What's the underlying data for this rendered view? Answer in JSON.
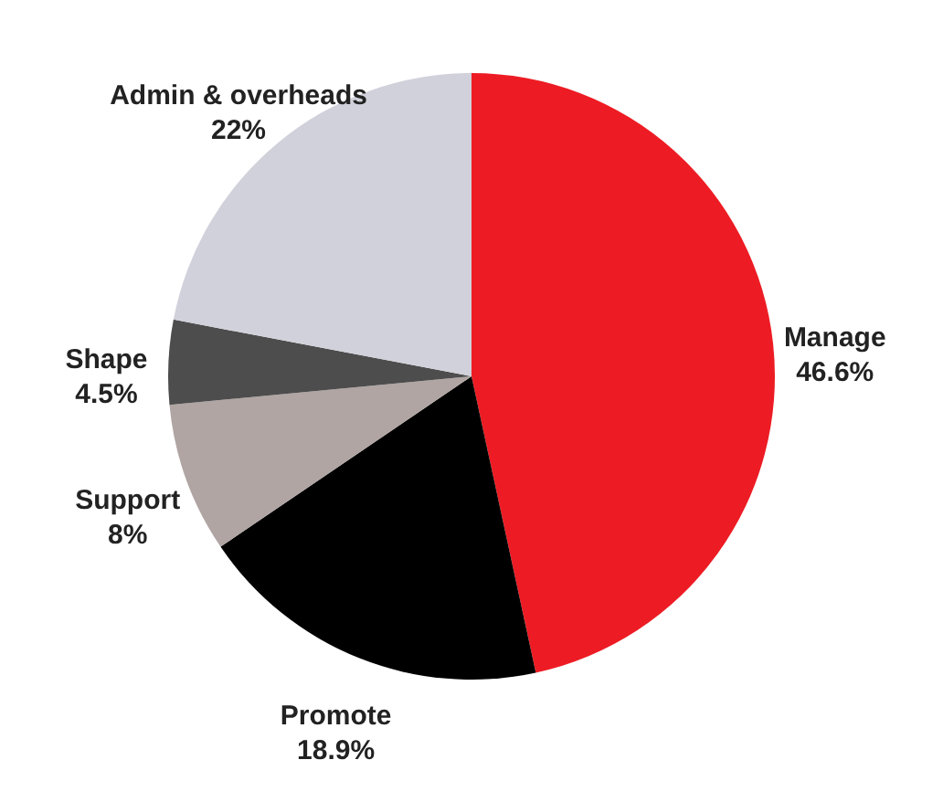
{
  "chart_data": {
    "type": "pie",
    "categories": [
      "Manage",
      "Promote",
      "Support",
      "Shape",
      "Admin & overheads"
    ],
    "values": [
      46.6,
      18.9,
      8,
      4.5,
      22
    ],
    "value_labels": [
      "46.6%",
      "18.9%",
      "8%",
      "4.5%",
      "22%"
    ],
    "colors": [
      "#ed1c24",
      "#000000",
      "#b0a5a3",
      "#4d4d4d",
      "#d1d1db"
    ]
  }
}
